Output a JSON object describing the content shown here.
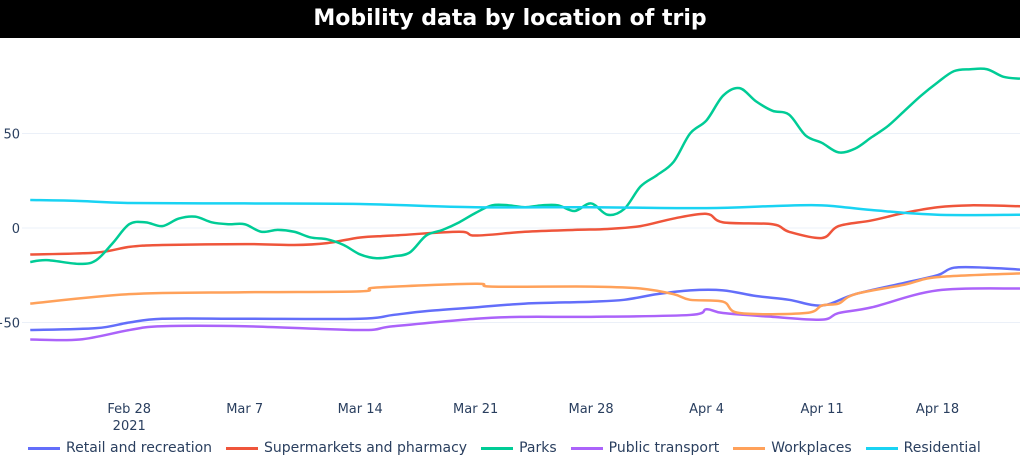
{
  "chart_data": {
    "type": "line",
    "title": "Mobility data by location of trip",
    "xlabel": "",
    "ylabel": "",
    "x_range": [
      "2021-02-21T12:00",
      "2021-04-23"
    ],
    "ylim": [
      -95,
      100
    ],
    "y_ticks": [
      50,
      0,
      -50
    ],
    "y_tick_labels": [
      "50",
      "0",
      "−50"
    ],
    "x_ticks": [
      "2021-02-28",
      "2021-03-07",
      "2021-03-14",
      "2021-03-21",
      "2021-03-28",
      "2021-04-04",
      "2021-04-11",
      "2021-04-18"
    ],
    "x_tick_labels": [
      "Feb 28",
      "Mar 7",
      "Mar 14",
      "Mar 21",
      "Mar 28",
      "Apr 4",
      "Apr 11",
      "Apr 18"
    ],
    "x_year_label": "2021",
    "grid": true,
    "legend_position": "bottom",
    "series": [
      {
        "name": "Retail and recreation",
        "color": "#636efa",
        "points": [
          [
            "2021-02-22",
            -54
          ],
          [
            "2021-02-26",
            -53
          ],
          [
            "2021-02-28",
            -50
          ],
          [
            "2021-03-02",
            -48
          ],
          [
            "2021-03-07",
            -48
          ],
          [
            "2021-03-14",
            -48
          ],
          [
            "2021-03-16",
            -46
          ],
          [
            "2021-03-18",
            -44
          ],
          [
            "2021-03-21",
            -42
          ],
          [
            "2021-03-24",
            -40
          ],
          [
            "2021-03-28",
            -39
          ],
          [
            "2021-03-30",
            -38
          ],
          [
            "2021-04-01",
            -35
          ],
          [
            "2021-04-03",
            -33
          ],
          [
            "2021-04-05",
            -33
          ],
          [
            "2021-04-07",
            -36
          ],
          [
            "2021-04-09",
            -38
          ],
          [
            "2021-04-11",
            -41
          ],
          [
            "2021-04-13",
            -35
          ],
          [
            "2021-04-16",
            -29
          ],
          [
            "2021-04-18",
            -25
          ],
          [
            "2021-04-19",
            -21
          ],
          [
            "2021-04-21",
            -21
          ],
          [
            "2021-04-23",
            -22
          ]
        ]
      },
      {
        "name": "Supermarkets and pharmacy",
        "color": "#ef553b",
        "points": [
          [
            "2021-02-22",
            -14
          ],
          [
            "2021-02-26",
            -13
          ],
          [
            "2021-02-28",
            -10
          ],
          [
            "2021-03-02",
            -9
          ],
          [
            "2021-03-07",
            -8.5
          ],
          [
            "2021-03-10",
            -9
          ],
          [
            "2021-03-12",
            -8
          ],
          [
            "2021-03-14",
            -5
          ],
          [
            "2021-03-16",
            -4
          ],
          [
            "2021-03-20",
            -2
          ],
          [
            "2021-03-21",
            -4
          ],
          [
            "2021-03-24",
            -2
          ],
          [
            "2021-03-27",
            -1
          ],
          [
            "2021-03-29",
            -0.5
          ],
          [
            "2021-03-31",
            1
          ],
          [
            "2021-04-02",
            5
          ],
          [
            "2021-04-04",
            7.5
          ],
          [
            "2021-04-05",
            3
          ],
          [
            "2021-04-08",
            2
          ],
          [
            "2021-04-09",
            -2
          ],
          [
            "2021-04-11",
            -5.3
          ],
          [
            "2021-04-12",
            1
          ],
          [
            "2021-04-14",
            4
          ],
          [
            "2021-04-16",
            8
          ],
          [
            "2021-04-18",
            11
          ],
          [
            "2021-04-20",
            12
          ],
          [
            "2021-04-23",
            11.5
          ]
        ]
      },
      {
        "name": "Parks",
        "color": "#00cc96",
        "points": [
          [
            "2021-02-22",
            -18
          ],
          [
            "2021-02-23",
            -17
          ],
          [
            "2021-02-25",
            -19
          ],
          [
            "2021-02-26",
            -17
          ],
          [
            "2021-02-27",
            -8
          ],
          [
            "2021-02-28",
            2
          ],
          [
            "2021-03-01",
            3
          ],
          [
            "2021-03-02",
            1
          ],
          [
            "2021-03-03",
            5
          ],
          [
            "2021-03-04",
            6
          ],
          [
            "2021-03-05",
            3
          ],
          [
            "2021-03-06",
            2
          ],
          [
            "2021-03-07",
            2
          ],
          [
            "2021-03-08",
            -2
          ],
          [
            "2021-03-09",
            -1
          ],
          [
            "2021-03-10",
            -2
          ],
          [
            "2021-03-11",
            -5
          ],
          [
            "2021-03-12",
            -6
          ],
          [
            "2021-03-13",
            -9
          ],
          [
            "2021-03-14",
            -14
          ],
          [
            "2021-03-15",
            -16
          ],
          [
            "2021-03-16",
            -15
          ],
          [
            "2021-03-17",
            -13
          ],
          [
            "2021-03-18",
            -4
          ],
          [
            "2021-03-19",
            -1
          ],
          [
            "2021-03-20",
            3
          ],
          [
            "2021-03-21",
            8
          ],
          [
            "2021-03-22",
            12
          ],
          [
            "2021-03-23",
            12
          ],
          [
            "2021-03-24",
            11
          ],
          [
            "2021-03-25",
            12
          ],
          [
            "2021-03-26",
            12
          ],
          [
            "2021-03-27",
            9
          ],
          [
            "2021-03-28",
            13
          ],
          [
            "2021-03-29",
            7
          ],
          [
            "2021-03-30",
            10
          ],
          [
            "2021-03-31",
            22
          ],
          [
            "2021-04-01",
            28
          ],
          [
            "2021-04-02",
            35
          ],
          [
            "2021-04-03",
            50
          ],
          [
            "2021-04-04",
            57
          ],
          [
            "2021-04-05",
            70
          ],
          [
            "2021-04-06",
            74
          ],
          [
            "2021-04-07",
            67
          ],
          [
            "2021-04-08",
            62
          ],
          [
            "2021-04-09",
            60
          ],
          [
            "2021-04-10",
            49
          ],
          [
            "2021-04-11",
            45
          ],
          [
            "2021-04-12",
            40
          ],
          [
            "2021-04-13",
            42
          ],
          [
            "2021-04-14",
            48
          ],
          [
            "2021-04-15",
            54
          ],
          [
            "2021-04-16",
            62
          ],
          [
            "2021-04-17",
            70
          ],
          [
            "2021-04-18",
            77
          ],
          [
            "2021-04-19",
            83
          ],
          [
            "2021-04-20",
            84
          ],
          [
            "2021-04-21",
            84
          ],
          [
            "2021-04-22",
            80
          ],
          [
            "2021-04-23",
            79
          ]
        ]
      },
      {
        "name": "Public transport",
        "color": "#ab63fa",
        "points": [
          [
            "2021-02-22",
            -59
          ],
          [
            "2021-02-25",
            -59
          ],
          [
            "2021-02-28",
            -54
          ],
          [
            "2021-03-02",
            -52
          ],
          [
            "2021-03-07",
            -52
          ],
          [
            "2021-03-14",
            -54
          ],
          [
            "2021-03-16",
            -52
          ],
          [
            "2021-03-21",
            -48
          ],
          [
            "2021-03-24",
            -47
          ],
          [
            "2021-03-28",
            -47
          ],
          [
            "2021-04-03",
            -46
          ],
          [
            "2021-04-04",
            -43
          ],
          [
            "2021-04-05",
            -45
          ],
          [
            "2021-04-08",
            -47
          ],
          [
            "2021-04-11",
            -48.5
          ],
          [
            "2021-04-12",
            -45
          ],
          [
            "2021-04-14",
            -42
          ],
          [
            "2021-04-18",
            -33
          ],
          [
            "2021-04-23",
            -32
          ]
        ]
      },
      {
        "name": "Workplaces",
        "color": "#ffa15a",
        "points": [
          [
            "2021-02-22",
            -40
          ],
          [
            "2021-02-28",
            -35
          ],
          [
            "2021-03-07",
            -34
          ],
          [
            "2021-03-14",
            -33.5
          ],
          [
            "2021-03-15",
            -31.5
          ],
          [
            "2021-03-21",
            -29.5
          ],
          [
            "2021-03-22",
            -31
          ],
          [
            "2021-03-28",
            -31
          ],
          [
            "2021-03-31",
            -32
          ],
          [
            "2021-04-02",
            -35
          ],
          [
            "2021-04-03",
            -38
          ],
          [
            "2021-04-05",
            -39
          ],
          [
            "2021-04-06",
            -45
          ],
          [
            "2021-04-10",
            -45
          ],
          [
            "2021-04-11",
            -41
          ],
          [
            "2021-04-12",
            -40
          ],
          [
            "2021-04-13",
            -35
          ],
          [
            "2021-04-16",
            -30
          ],
          [
            "2021-04-18",
            -26
          ],
          [
            "2021-04-23",
            -24
          ]
        ]
      },
      {
        "name": "Residential",
        "color": "#19d3f3",
        "points": [
          [
            "2021-02-22",
            14.8
          ],
          [
            "2021-02-25",
            14.3
          ],
          [
            "2021-02-28",
            13.2
          ],
          [
            "2021-03-07",
            13
          ],
          [
            "2021-03-14",
            12.7
          ],
          [
            "2021-03-21",
            11
          ],
          [
            "2021-03-28",
            11
          ],
          [
            "2021-04-04",
            10.5
          ],
          [
            "2021-04-08",
            11.6
          ],
          [
            "2021-04-11",
            12
          ],
          [
            "2021-04-14",
            9.5
          ],
          [
            "2021-04-18",
            7
          ],
          [
            "2021-04-23",
            7
          ]
        ]
      }
    ]
  }
}
